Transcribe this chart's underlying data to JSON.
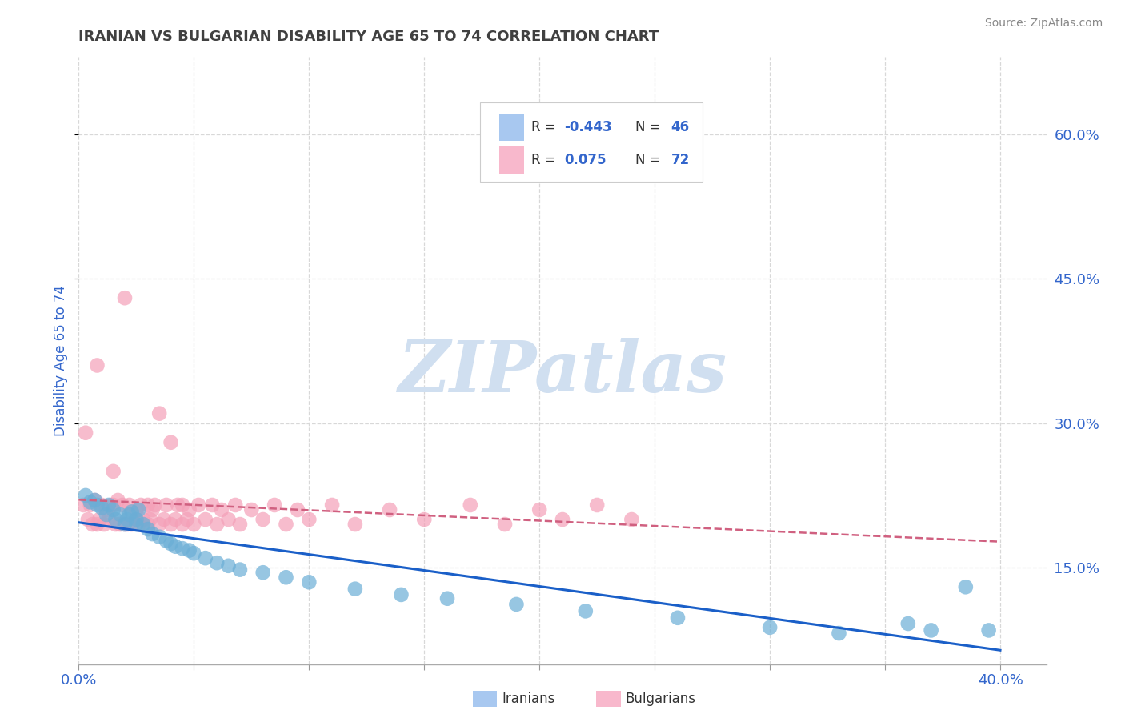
{
  "title": "IRANIAN VS BULGARIAN DISABILITY AGE 65 TO 74 CORRELATION CHART",
  "source": "Source: ZipAtlas.com",
  "ylabel": "Disability Age 65 to 74",
  "xlim": [
    0.0,
    0.42
  ],
  "ylim": [
    0.05,
    0.68
  ],
  "xticks": [
    0.0,
    0.05,
    0.1,
    0.15,
    0.2,
    0.25,
    0.3,
    0.35,
    0.4
  ],
  "yticks": [
    0.15,
    0.3,
    0.45,
    0.6
  ],
  "ytick_labels": [
    "15.0%",
    "30.0%",
    "45.0%",
    "60.0%"
  ],
  "iranian_color": "#6baed6",
  "bulgarian_color": "#f4a0b8",
  "iranian_line_color": "#1a5fc8",
  "bulgarian_line_color": "#d06080",
  "watermark_text": "ZIPatlas",
  "watermark_color": "#d0dff0",
  "background_color": "#ffffff",
  "grid_color": "#d8d8d8",
  "title_color": "#404040",
  "axis_label_color": "#3366cc",
  "tick_color": "#3366cc",
  "legend_blue_color": "#a8c8f0",
  "legend_pink_color": "#f8b8cc",
  "iranians_x": [
    0.003,
    0.005,
    0.007,
    0.008,
    0.01,
    0.012,
    0.013,
    0.015,
    0.016,
    0.018,
    0.02,
    0.021,
    0.022,
    0.023,
    0.025,
    0.025,
    0.026,
    0.028,
    0.03,
    0.032,
    0.035,
    0.038,
    0.04,
    0.042,
    0.045,
    0.048,
    0.05,
    0.055,
    0.06,
    0.065,
    0.07,
    0.08,
    0.09,
    0.1,
    0.12,
    0.14,
    0.16,
    0.19,
    0.22,
    0.26,
    0.3,
    0.33,
    0.36,
    0.37,
    0.385,
    0.395
  ],
  "iranians_y": [
    0.225,
    0.218,
    0.22,
    0.215,
    0.212,
    0.205,
    0.215,
    0.21,
    0.2,
    0.205,
    0.195,
    0.2,
    0.205,
    0.208,
    0.195,
    0.2,
    0.21,
    0.195,
    0.19,
    0.185,
    0.182,
    0.178,
    0.175,
    0.172,
    0.17,
    0.168,
    0.165,
    0.16,
    0.155,
    0.152,
    0.148,
    0.145,
    0.14,
    0.135,
    0.128,
    0.122,
    0.118,
    0.112,
    0.105,
    0.098,
    0.088,
    0.082,
    0.092,
    0.085,
    0.13,
    0.085
  ],
  "bulgarians_x": [
    0.002,
    0.003,
    0.004,
    0.005,
    0.006,
    0.007,
    0.008,
    0.008,
    0.009,
    0.01,
    0.011,
    0.012,
    0.013,
    0.014,
    0.015,
    0.015,
    0.016,
    0.017,
    0.018,
    0.019,
    0.02,
    0.02,
    0.021,
    0.022,
    0.023,
    0.025,
    0.025,
    0.026,
    0.027,
    0.028,
    0.03,
    0.03,
    0.031,
    0.032,
    0.033,
    0.035,
    0.035,
    0.037,
    0.038,
    0.04,
    0.04,
    0.042,
    0.043,
    0.045,
    0.045,
    0.047,
    0.048,
    0.05,
    0.052,
    0.055,
    0.058,
    0.06,
    0.062,
    0.065,
    0.068,
    0.07,
    0.075,
    0.08,
    0.085,
    0.09,
    0.095,
    0.1,
    0.11,
    0.12,
    0.135,
    0.15,
    0.17,
    0.185,
    0.2,
    0.21,
    0.225,
    0.24
  ],
  "bulgarians_y": [
    0.215,
    0.29,
    0.2,
    0.215,
    0.195,
    0.22,
    0.195,
    0.36,
    0.2,
    0.215,
    0.195,
    0.21,
    0.2,
    0.215,
    0.215,
    0.25,
    0.195,
    0.22,
    0.195,
    0.215,
    0.195,
    0.43,
    0.195,
    0.215,
    0.195,
    0.2,
    0.21,
    0.195,
    0.215,
    0.2,
    0.195,
    0.215,
    0.2,
    0.21,
    0.215,
    0.195,
    0.31,
    0.2,
    0.215,
    0.195,
    0.28,
    0.2,
    0.215,
    0.195,
    0.215,
    0.2,
    0.21,
    0.195,
    0.215,
    0.2,
    0.215,
    0.195,
    0.21,
    0.2,
    0.215,
    0.195,
    0.21,
    0.2,
    0.215,
    0.195,
    0.21,
    0.2,
    0.215,
    0.195,
    0.21,
    0.2,
    0.215,
    0.195,
    0.21,
    0.2,
    0.215,
    0.2
  ]
}
